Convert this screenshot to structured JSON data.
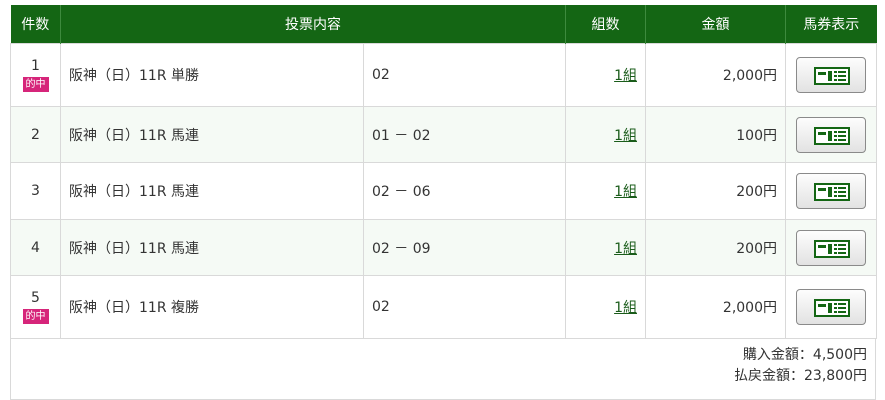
{
  "headers": [
    "件数",
    "投票内容",
    "組数",
    "金額",
    "馬券表示"
  ],
  "hit_label": "的中",
  "rows": [
    {
      "no": "1",
      "hit": true,
      "race": "阪神（日）11R 単勝",
      "selection": "02",
      "sets": "1組",
      "amount": "2,000円"
    },
    {
      "no": "2",
      "hit": false,
      "race": "阪神（日）11R 馬連",
      "selection": "01 － 02",
      "sets": "1組",
      "amount": "100円"
    },
    {
      "no": "3",
      "hit": false,
      "race": "阪神（日）11R 馬連",
      "selection": "02 － 06",
      "sets": "1組",
      "amount": "200円"
    },
    {
      "no": "4",
      "hit": false,
      "race": "阪神（日）11R 馬連",
      "selection": "02 － 09",
      "sets": "1組",
      "amount": "200円"
    },
    {
      "no": "5",
      "hit": true,
      "race": "阪神（日）11R 複勝",
      "selection": "02",
      "sets": "1組",
      "amount": "2,000円"
    }
  ],
  "summary": {
    "purchase": "購入金額：4,500円",
    "payout": "払戻金額：23,800円"
  },
  "colors": {
    "header": "#146614",
    "hit_badge": "#d6257a",
    "alt_row": "#f5faf5"
  },
  "button_icon": "ticket-icon"
}
